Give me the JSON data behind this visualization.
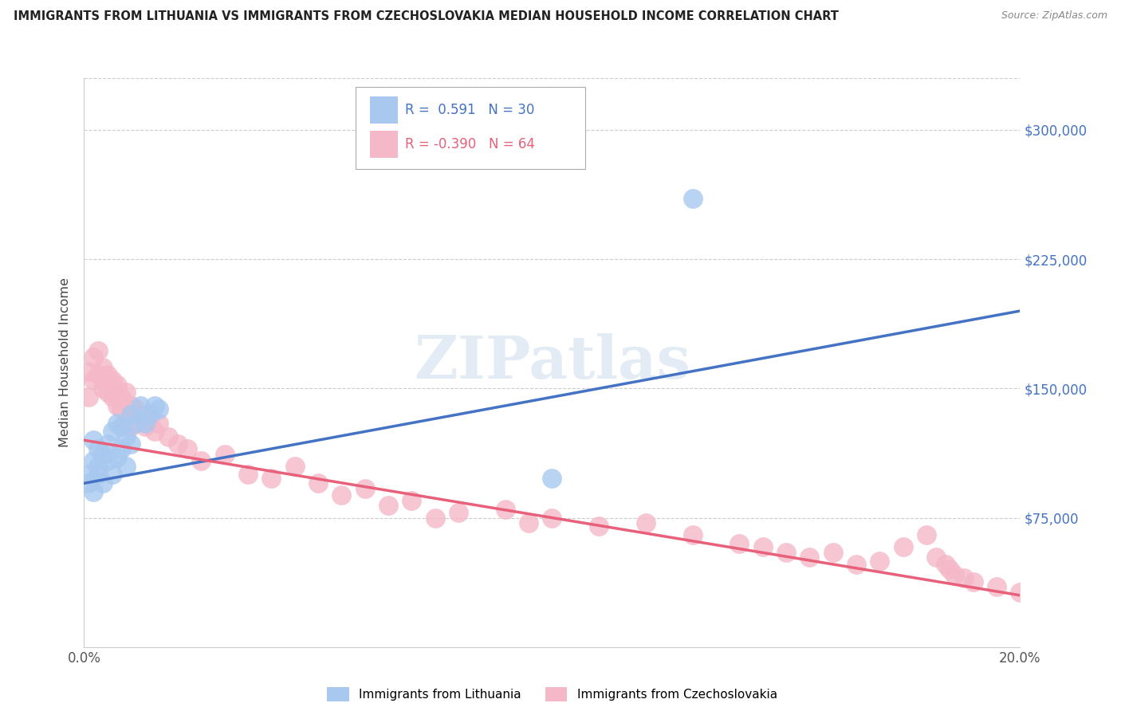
{
  "title": "IMMIGRANTS FROM LITHUANIA VS IMMIGRANTS FROM CZECHOSLOVAKIA MEDIAN HOUSEHOLD INCOME CORRELATION CHART",
  "source": "Source: ZipAtlas.com",
  "ylabel": "Median Household Income",
  "legend_label_blue": "Immigrants from Lithuania",
  "legend_label_pink": "Immigrants from Czechoslovakia",
  "blue_color": "#a8c8f0",
  "pink_color": "#f4b8c8",
  "blue_line_color": "#4472c4",
  "pink_line_color": "#e8607a",
  "axis_label_color": "#4472c4",
  "yaxis_labels": [
    "$75,000",
    "$150,000",
    "$225,000",
    "$300,000"
  ],
  "yaxis_values": [
    75000,
    150000,
    225000,
    300000
  ],
  "xlim": [
    0,
    0.2
  ],
  "ylim": [
    0,
    330000
  ],
  "blue_scatter_x": [
    0.001,
    0.001,
    0.002,
    0.002,
    0.002,
    0.003,
    0.003,
    0.003,
    0.004,
    0.004,
    0.005,
    0.005,
    0.006,
    0.006,
    0.007,
    0.007,
    0.008,
    0.008,
    0.009,
    0.009,
    0.01,
    0.01,
    0.011,
    0.012,
    0.013,
    0.014,
    0.015,
    0.016,
    0.1,
    0.13
  ],
  "blue_scatter_y": [
    100000,
    95000,
    108000,
    120000,
    90000,
    105000,
    115000,
    100000,
    112000,
    95000,
    118000,
    108000,
    125000,
    100000,
    130000,
    110000,
    128000,
    115000,
    122000,
    105000,
    135000,
    118000,
    130000,
    140000,
    130000,
    135000,
    140000,
    138000,
    98000,
    260000
  ],
  "pink_scatter_x": [
    0.001,
    0.001,
    0.002,
    0.002,
    0.003,
    0.003,
    0.004,
    0.004,
    0.005,
    0.005,
    0.006,
    0.006,
    0.007,
    0.007,
    0.008,
    0.008,
    0.009,
    0.009,
    0.01,
    0.01,
    0.011,
    0.012,
    0.013,
    0.014,
    0.015,
    0.016,
    0.018,
    0.02,
    0.022,
    0.025,
    0.03,
    0.035,
    0.04,
    0.045,
    0.05,
    0.055,
    0.06,
    0.065,
    0.07,
    0.075,
    0.08,
    0.09,
    0.095,
    0.1,
    0.11,
    0.12,
    0.13,
    0.14,
    0.145,
    0.15,
    0.155,
    0.16,
    0.165,
    0.17,
    0.175,
    0.18,
    0.182,
    0.184,
    0.185,
    0.186,
    0.188,
    0.19,
    0.195,
    0.2
  ],
  "pink_scatter_y": [
    145000,
    160000,
    155000,
    168000,
    158000,
    172000,
    150000,
    162000,
    148000,
    158000,
    145000,
    155000,
    140000,
    152000,
    145000,
    138000,
    148000,
    130000,
    140000,
    128000,
    138000,
    135000,
    128000,
    132000,
    125000,
    130000,
    122000,
    118000,
    115000,
    108000,
    112000,
    100000,
    98000,
    105000,
    95000,
    88000,
    92000,
    82000,
    85000,
    75000,
    78000,
    80000,
    72000,
    75000,
    70000,
    72000,
    65000,
    60000,
    58000,
    55000,
    52000,
    55000,
    48000,
    50000,
    58000,
    65000,
    52000,
    48000,
    45000,
    42000,
    40000,
    38000,
    35000,
    32000
  ],
  "blue_line_x0": 0.0,
  "blue_line_y0": 95000,
  "blue_line_x1": 0.2,
  "blue_line_y1": 195000,
  "pink_line_x0": 0.0,
  "pink_line_y0": 120000,
  "pink_line_x1": 0.2,
  "pink_line_y1": 30000
}
